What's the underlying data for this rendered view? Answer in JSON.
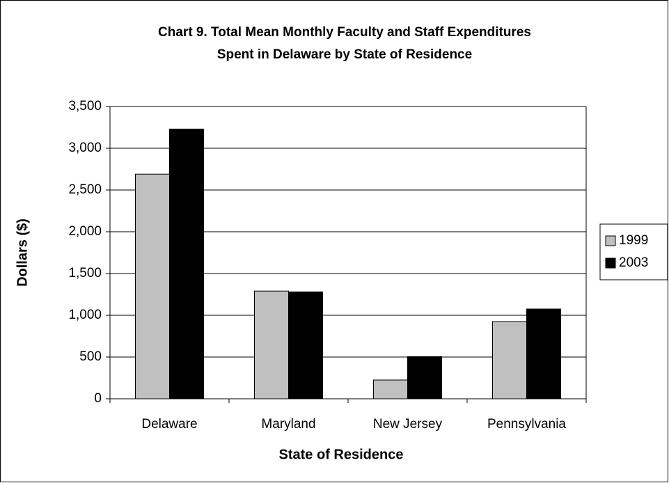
{
  "chart_data": {
    "type": "bar",
    "title": [
      "Chart 9.  Total Mean Monthly Faculty and Staff Expenditures",
      "Spent in Delaware by State of Residence"
    ],
    "x_label": "State of Residence",
    "y_label": "Dollars ($)",
    "categories": [
      "Delaware",
      "Maryland",
      "New Jersey",
      "Pennsylvania"
    ],
    "series": [
      {
        "name": "1999",
        "color": "#c0c0c0",
        "values": [
          2690,
          1290,
          225,
          925
        ]
      },
      {
        "name": "2003",
        "color": "#000000",
        "values": [
          3230,
          1280,
          505,
          1075
        ]
      }
    ],
    "ylim": [
      0,
      3500
    ],
    "yticks": [
      0,
      500,
      {
        "value": 1000,
        "label": "1,000"
      },
      {
        "value": 1500,
        "label": "1,500"
      },
      {
        "value": 2000,
        "label": "2,000"
      },
      {
        "value": 2500,
        "label": "2,500"
      },
      {
        "value": 3000,
        "label": "3,000"
      },
      {
        "value": 3500,
        "label": "3,500"
      }
    ],
    "grid": true,
    "legend": "right"
  }
}
